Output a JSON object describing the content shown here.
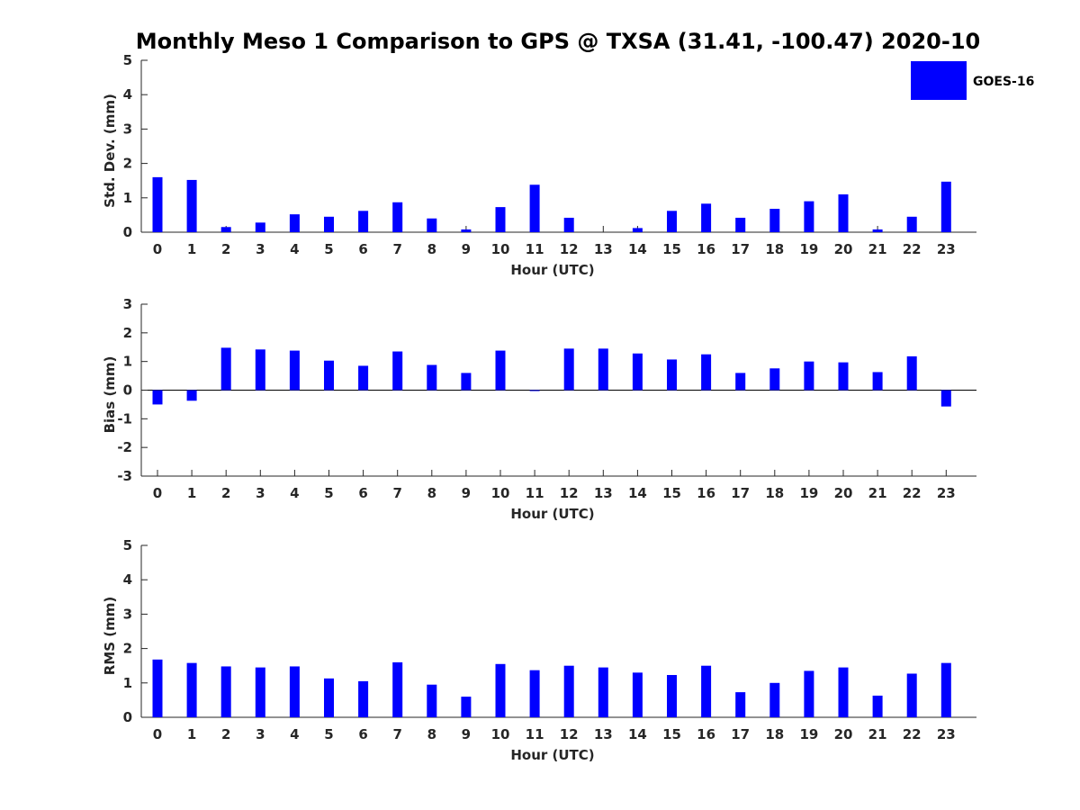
{
  "figure": {
    "title": "Monthly Meso 1 Comparison to GPS @ TXSA (31.41, -100.47) 2020-10"
  },
  "legend": {
    "label": "GOES-16",
    "color": "#0000ff",
    "placement": "top-right"
  },
  "chart_data": [
    {
      "type": "bar",
      "title": "Monthly Meso 1 Comparison to GPS @ TXSA (31.41, -100.47) 2020-10",
      "xlabel": "Hour (UTC)",
      "ylabel": "Std. Dev. (mm)",
      "x": [
        0,
        1,
        2,
        3,
        4,
        5,
        6,
        7,
        8,
        9,
        10,
        11,
        12,
        13,
        14,
        15,
        16,
        17,
        18,
        19,
        20,
        21,
        22,
        23
      ],
      "xticks": [
        "0",
        "1",
        "2",
        "3",
        "4",
        "5",
        "6",
        "7",
        "8",
        "9",
        "10",
        "11",
        "12",
        "13",
        "14",
        "15",
        "16",
        "17",
        "18",
        "19",
        "20",
        "21",
        "22",
        "23"
      ],
      "ylim": [
        0,
        5
      ],
      "yticks": [
        "0",
        "1",
        "2",
        "3",
        "4",
        "5"
      ],
      "series": [
        {
          "name": "GOES-16",
          "color": "#0000ff",
          "values": [
            1.6,
            1.52,
            0.15,
            0.28,
            0.52,
            0.45,
            0.62,
            0.87,
            0.4,
            0.08,
            0.73,
            1.38,
            0.42,
            0.0,
            0.12,
            0.62,
            0.83,
            0.42,
            0.68,
            0.9,
            1.1,
            0.08,
            0.45,
            1.47
          ]
        }
      ],
      "grid": false,
      "legend": "top-right"
    },
    {
      "type": "bar",
      "xlabel": "Hour (UTC)",
      "ylabel": "Bias (mm)",
      "x": [
        0,
        1,
        2,
        3,
        4,
        5,
        6,
        7,
        8,
        9,
        10,
        11,
        12,
        13,
        14,
        15,
        16,
        17,
        18,
        19,
        20,
        21,
        22,
        23
      ],
      "xticks": [
        "0",
        "1",
        "2",
        "3",
        "4",
        "5",
        "6",
        "7",
        "8",
        "9",
        "10",
        "11",
        "12",
        "13",
        "14",
        "15",
        "16",
        "17",
        "18",
        "19",
        "20",
        "21",
        "22",
        "23"
      ],
      "ylim": [
        -3,
        3
      ],
      "yticks": [
        "-3",
        "-2",
        "-1",
        "0",
        "1",
        "2",
        "3"
      ],
      "series": [
        {
          "name": "GOES-16",
          "color": "#0000ff",
          "values": [
            -0.5,
            -0.37,
            1.48,
            1.42,
            1.38,
            1.03,
            0.85,
            1.35,
            0.88,
            0.6,
            1.38,
            -0.03,
            1.45,
            1.45,
            1.28,
            1.07,
            1.25,
            0.6,
            0.76,
            1.0,
            0.97,
            0.63,
            1.18,
            -0.57
          ]
        }
      ],
      "grid": false
    },
    {
      "type": "bar",
      "xlabel": "Hour (UTC)",
      "ylabel": "RMS (mm)",
      "x": [
        0,
        1,
        2,
        3,
        4,
        5,
        6,
        7,
        8,
        9,
        10,
        11,
        12,
        13,
        14,
        15,
        16,
        17,
        18,
        19,
        20,
        21,
        22,
        23
      ],
      "xticks": [
        "0",
        "1",
        "2",
        "3",
        "4",
        "5",
        "6",
        "7",
        "8",
        "9",
        "10",
        "11",
        "12",
        "13",
        "14",
        "15",
        "16",
        "17",
        "18",
        "19",
        "20",
        "21",
        "22",
        "23"
      ],
      "ylim": [
        0,
        5
      ],
      "yticks": [
        "0",
        "1",
        "2",
        "3",
        "4",
        "5"
      ],
      "series": [
        {
          "name": "GOES-16",
          "color": "#0000ff",
          "values": [
            1.68,
            1.58,
            1.48,
            1.45,
            1.48,
            1.13,
            1.05,
            1.6,
            0.95,
            0.6,
            1.55,
            1.37,
            1.5,
            1.45,
            1.3,
            1.23,
            1.5,
            0.73,
            1.0,
            1.35,
            1.45,
            0.63,
            1.27,
            1.58
          ]
        }
      ],
      "grid": false
    }
  ]
}
